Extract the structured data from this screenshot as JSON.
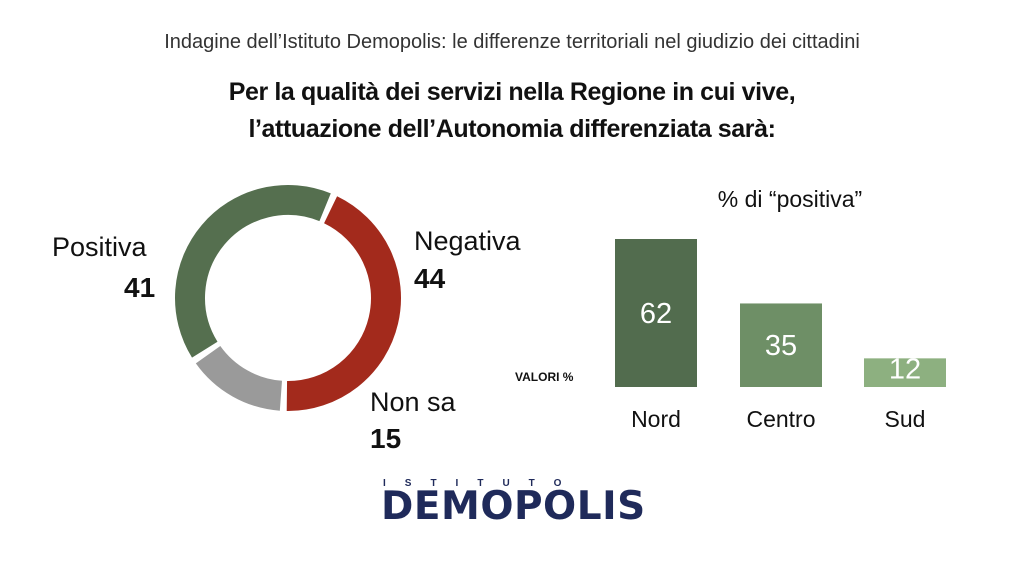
{
  "subtitle": "Indagine dell’Istituto Demopolis: le differenze territoriali nel giudizio dei cittadini",
  "title_line1": "Per la qualità dei servizi nella Regione in cui vive,",
  "title_line2": "l’attuazione dell’Autonomia differenziata sarà:",
  "bar_title": "% di “positiva”",
  "values_note": "VALORI %",
  "logo": {
    "top": "ISTITUTO",
    "main": "DEMOPOLIS"
  },
  "colors": {
    "positiva": "#556f4f",
    "negativa": "#a32a1c",
    "non_sa": "#9a9a9a",
    "nord": "#526c4e",
    "centro": "#6e8f66",
    "sud": "#8db080"
  },
  "chart_data": [
    {
      "type": "pie",
      "donut": true,
      "slices": [
        {
          "label": "Negativa",
          "value": 44,
          "value_label": "44",
          "color": "#a32a1c"
        },
        {
          "label": "Non sa",
          "value": 15,
          "value_label": "15",
          "color": "#9a9a9a"
        },
        {
          "label": "Positiva",
          "value": 41,
          "value_label": "41",
          "color": "#556f4f"
        }
      ]
    },
    {
      "type": "bar",
      "title": "% di “positiva”",
      "categories": [
        "Nord",
        "Centro",
        "Sud"
      ],
      "values": [
        62,
        35,
        12
      ],
      "colors": [
        "#526c4e",
        "#6e8f66",
        "#8db080"
      ],
      "ylim": [
        0,
        62
      ]
    }
  ]
}
